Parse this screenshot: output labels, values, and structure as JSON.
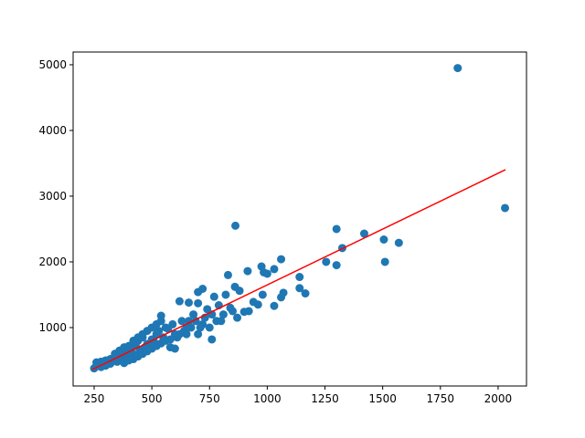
{
  "chart_data": {
    "type": "scatter",
    "xlim": [
      159,
      2123
    ],
    "ylim": [
      111,
      5194
    ],
    "xticks": [
      250,
      500,
      750,
      1000,
      1250,
      1500,
      1750,
      2000
    ],
    "yticks": [
      1000,
      2000,
      3000,
      4000,
      5000
    ],
    "grid": false,
    "series": [
      {
        "kind": "scatter",
        "color": "#1f77b4",
        "x": [
          1825,
          2030,
          862,
          1300,
          1325,
          1420,
          1505,
          1570,
          1510,
          1300,
          1255,
          1060,
          1030,
          975,
          1000,
          985,
          1140,
          1140,
          1165,
          1060,
          1070,
          1030,
          980,
          915,
          830,
          700,
          720,
          860,
          880,
          940,
          960,
          900,
          920,
          870,
          820,
          770,
          790,
          760,
          740,
          700,
          660,
          620,
          540,
          560,
          600,
          640,
          660,
          680,
          720,
          700,
          750,
          800,
          850,
          580,
          600,
          760,
          500,
          480,
          450,
          420,
          400,
          380,
          350,
          320,
          300,
          280,
          260,
          250,
          270,
          290,
          310,
          330,
          340,
          360,
          370,
          390,
          410,
          430,
          440,
          460,
          470,
          490,
          510,
          520,
          530,
          550,
          570,
          590,
          610,
          630,
          650,
          670,
          690,
          710,
          730,
          780,
          810,
          840,
          260,
          280,
          300,
          320,
          340,
          360,
          380,
          400,
          420,
          440,
          460,
          480,
          500,
          520,
          540,
          380,
          400,
          420,
          440,
          460,
          480,
          500,
          520,
          540,
          560,
          580,
          620,
          650
        ],
        "y": [
          4950,
          2820,
          2550,
          2500,
          2210,
          2430,
          2340,
          2290,
          2000,
          1950,
          2000,
          2040,
          1890,
          1930,
          1820,
          1840,
          1770,
          1600,
          1520,
          1460,
          1530,
          1330,
          1500,
          1860,
          1800,
          1540,
          1590,
          1620,
          1560,
          1390,
          1350,
          1240,
          1250,
          1150,
          1500,
          1470,
          1340,
          1200,
          1280,
          1370,
          1380,
          1400,
          1180,
          1000,
          900,
          950,
          1100,
          1200,
          1050,
          900,
          1000,
          1100,
          1250,
          700,
          680,
          820,
          820,
          750,
          650,
          600,
          580,
          520,
          480,
          450,
          420,
          400,
          420,
          380,
          460,
          430,
          480,
          500,
          540,
          560,
          620,
          640,
          700,
          720,
          800,
          850,
          700,
          700,
          780,
          900,
          950,
          850,
          980,
          1050,
          850,
          1100,
          900,
          1000,
          1100,
          1000,
          1150,
          1100,
          1200,
          1300,
          470,
          480,
          500,
          520,
          600,
          650,
          700,
          720,
          800,
          850,
          900,
          950,
          1000,
          1050,
          1100,
          460,
          500,
          520,
          560,
          600,
          640,
          680,
          720,
          760,
          800,
          820,
          900,
          1000
        ]
      },
      {
        "kind": "line",
        "color": "#ff0000",
        "x": [
          242,
          2032
        ],
        "y": [
          361,
          3403
        ]
      }
    ]
  }
}
